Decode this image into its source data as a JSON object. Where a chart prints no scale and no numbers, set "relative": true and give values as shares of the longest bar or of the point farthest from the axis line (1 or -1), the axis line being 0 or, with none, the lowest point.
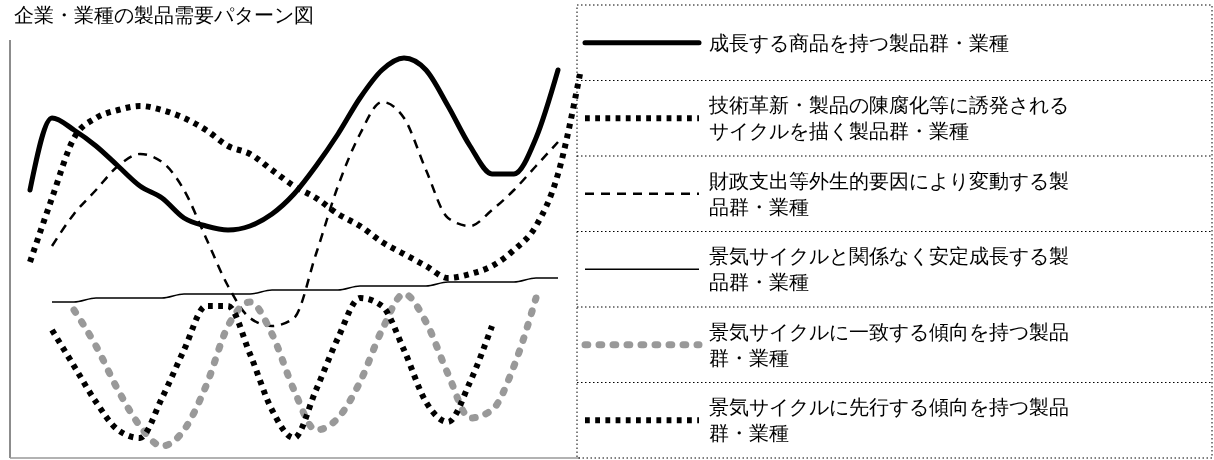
{
  "chart_data": {
    "type": "line",
    "title": "企業・業種の製品需要パターン図",
    "relative": true,
    "legend": "right",
    "categories": [
      null,
      null,
      null,
      null,
      null,
      null,
      null,
      null,
      null,
      null,
      null,
      null,
      null,
      null,
      null,
      null,
      null,
      null,
      null,
      null,
      null,
      null,
      null,
      null,
      null,
      null
    ],
    "series": [
      {
        "name": "成長する商品を持つ製品群・業種",
        "color": "#000000",
        "line_style": "solid",
        "values": [
          0.67,
          0.85,
          0.82,
          0.78,
          0.73,
          0.68,
          0.65,
          0.6,
          0.58,
          0.57,
          0.58,
          0.61,
          0.66,
          0.73,
          0.81,
          0.9,
          0.97,
          1.0,
          0.97,
          0.88,
          0.78,
          0.71,
          0.71,
          0.8,
          0.97,
          null
        ]
      },
      {
        "name": "技術革新・製品の陳腐化等に誘発されるサイクルを描く製品群・業種",
        "color": "#000000",
        "line_style": "dotted",
        "values": [
          0.49,
          0.65,
          0.8,
          0.85,
          0.87,
          0.88,
          0.87,
          0.85,
          0.82,
          0.78,
          0.76,
          0.72,
          0.68,
          0.65,
          0.61,
          0.58,
          0.54,
          0.51,
          0.48,
          0.45,
          0.46,
          0.48,
          0.52,
          0.58,
          0.71,
          0.96
        ]
      },
      {
        "name": "財政支出等外生的要因により変動する製品群・業種",
        "color": "#000000",
        "line_style": "dashed",
        "values": [
          null,
          0.53,
          0.61,
          0.67,
          0.73,
          0.76,
          0.74,
          0.67,
          0.55,
          0.43,
          0.35,
          0.33,
          0.35,
          0.51,
          0.68,
          0.81,
          0.89,
          0.85,
          0.72,
          0.6,
          0.58,
          0.62,
          0.67,
          0.73,
          0.79,
          null
        ]
      },
      {
        "name": "景気サイクルと関係なく安定成長する製品群・業種",
        "color": "#000000",
        "line_style": "solid",
        "values": [
          null,
          0.39,
          0.39,
          0.4,
          0.4,
          0.4,
          0.4,
          0.41,
          0.41,
          0.41,
          0.41,
          0.42,
          0.42,
          0.42,
          0.42,
          0.43,
          0.43,
          0.43,
          0.43,
          0.44,
          0.44,
          0.44,
          0.44,
          0.45,
          0.45,
          null
        ]
      },
      {
        "name": "景気サイクルに一致する傾向を持つ製品群・業種",
        "color": "#999999",
        "line_style": "dotted",
        "values": [
          null,
          null,
          0.37,
          0.28,
          0.17,
          0.08,
          0.03,
          0.07,
          0.18,
          0.33,
          0.39,
          0.31,
          0.17,
          0.07,
          0.1,
          0.19,
          0.32,
          0.41,
          0.34,
          0.21,
          0.1,
          0.12,
          0.23,
          0.4,
          null,
          null
        ]
      },
      {
        "name": "景気サイクルに先行する傾向を持つ製品群・業種",
        "color": "#000000",
        "line_style": "dotted",
        "values": [
          null,
          0.32,
          0.23,
          0.14,
          0.07,
          0.05,
          0.15,
          0.27,
          0.38,
          0.38,
          0.26,
          0.12,
          0.05,
          0.17,
          0.3,
          0.4,
          0.38,
          0.27,
          0.14,
          0.09,
          0.19,
          0.33,
          null,
          null,
          null,
          null
        ]
      }
    ]
  }
}
